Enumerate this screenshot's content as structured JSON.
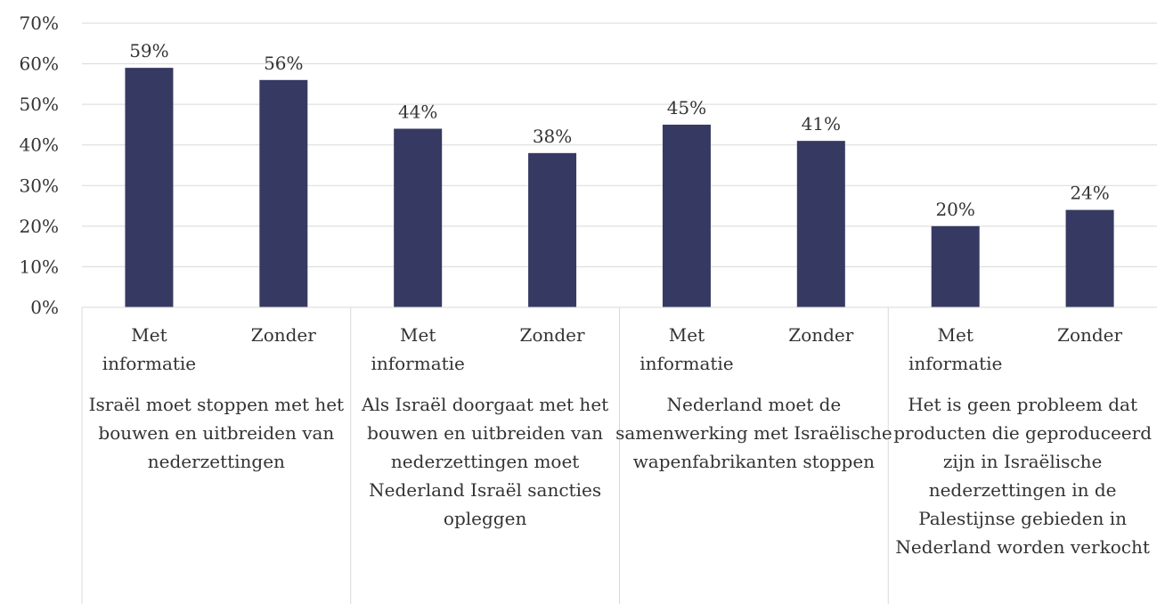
{
  "chart_data": {
    "type": "bar",
    "groups": [
      "Israël moet stoppen met het bouwen en uitbreiden van nederzettingen",
      "Als Israël doorgaat met het bouwen en uitbreiden van nederzettingen moet Nederland Israël sancties opleggen",
      "Nederland moet de samenwerking met Israëlische wapenfabrikanten stoppen",
      "Het is geen probleem dat producten die geproduceerd zijn in Israëlische nederzettingen in de Palestijnse gebieden in Nederland worden verkocht"
    ],
    "categories": [
      "Met informatie",
      "Zonder",
      "Met informatie",
      "Zonder",
      "Met informatie",
      "Zonder",
      "Met informatie",
      "Zonder"
    ],
    "values": [
      59,
      56,
      44,
      38,
      45,
      41,
      20,
      24
    ],
    "value_labels": [
      "59%",
      "56%",
      "44%",
      "38%",
      "45%",
      "41%",
      "20%",
      "24%"
    ],
    "color": "#363a62",
    "ylim": [
      0,
      70
    ],
    "yticks": [
      {
        "value": 0,
        "label": "0%"
      },
      {
        "value": 10,
        "label": "10%"
      },
      {
        "value": 20,
        "label": "20%"
      },
      {
        "value": 30,
        "label": "30%"
      },
      {
        "value": 40,
        "label": "40%"
      },
      {
        "value": 50,
        "label": "50%"
      },
      {
        "value": 60,
        "label": "60%"
      },
      {
        "value": 70,
        "label": "70%"
      }
    ],
    "grid": true
  }
}
